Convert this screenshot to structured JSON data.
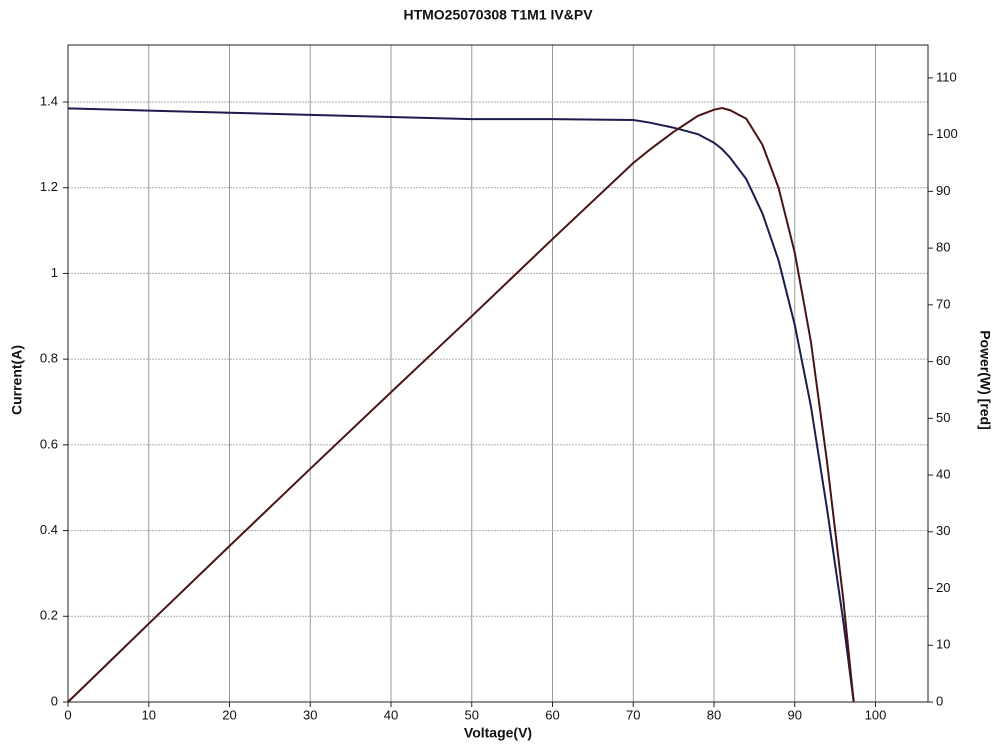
{
  "chart_data": {
    "type": "line",
    "title": "HTMO25070308 T1M1 IV&PV",
    "x_label": "Voltage(V)",
    "y_label": "Current(A)",
    "y2_label": "Power(W) [red]",
    "x": [
      0,
      10,
      20,
      30,
      40,
      50,
      60,
      70,
      72,
      75,
      78,
      80,
      81,
      82,
      84,
      86,
      88,
      90,
      92,
      94,
      96,
      97.3
    ],
    "series": [
      {
        "color": "#1c1c4e",
        "values": [
          1.385,
          1.38,
          1.375,
          1.37,
          1.365,
          1.36,
          1.36,
          1.358,
          1.352,
          1.34,
          1.325,
          1.305,
          1.29,
          1.27,
          1.22,
          1.14,
          1.03,
          0.88,
          0.69,
          0.45,
          0.19,
          0
        ]
      },
      {
        "color": "#4a1414",
        "axis": "y2",
        "values": [
          0,
          13.8,
          27.5,
          41.1,
          54.6,
          68,
          81.6,
          95,
          97.3,
          100.5,
          103.3,
          104.4,
          104.7,
          104.3,
          102.8,
          98.2,
          90.6,
          79.2,
          63.5,
          42.3,
          18.2,
          0
        ]
      }
    ],
    "xlim": [
      0,
      106.5
    ],
    "xticks": [
      0,
      10,
      20,
      30,
      40,
      50,
      60,
      70,
      80,
      90,
      100
    ],
    "ylim": [
      0,
      1.533
    ],
    "yticks": [
      0,
      0.2,
      0.4,
      0.6,
      0.8,
      1,
      1.2,
      1.4
    ],
    "y2lim": [
      0,
      115.8
    ],
    "y2ticks": [
      0,
      10,
      20,
      30,
      40,
      50,
      60,
      70,
      80,
      90,
      100,
      110
    ],
    "grid": true
  }
}
